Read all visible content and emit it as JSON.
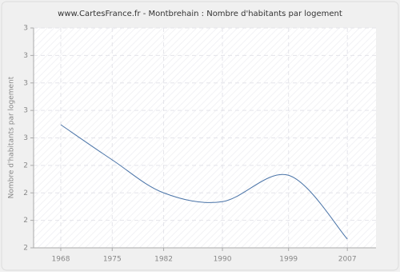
{
  "chart_data": {
    "type": "line",
    "title": "www.CartesFrance.fr - Montbrehain : Nombre d'habitants par logement",
    "ylabel": "Nombre d'habitants par logement",
    "x": [
      1968,
      1975,
      1982,
      1990,
      1999,
      2007
    ],
    "series": [
      {
        "name": "Montbrehain",
        "color": "#4a74a8",
        "values": [
          2.56,
          2.4,
          2.25,
          2.21,
          2.33,
          2.04
        ]
      }
    ],
    "xlim": [
      1964.3,
      2010.9
    ],
    "xticks": [
      1968,
      1975,
      1982,
      1990,
      1999,
      2007
    ],
    "ylim": [
      2,
      3
    ],
    "yticks": [
      2,
      {
        "value": 2.125,
        "label": "2"
      },
      {
        "value": 2.25,
        "label": "2"
      },
      {
        "value": 2.375,
        "label": "2"
      },
      {
        "value": 2.5,
        "label": "3"
      },
      {
        "value": 2.625,
        "label": "3"
      },
      {
        "value": 2.75,
        "label": "3"
      },
      {
        "value": 2.875,
        "label": "3"
      },
      3
    ],
    "grid": true
  }
}
